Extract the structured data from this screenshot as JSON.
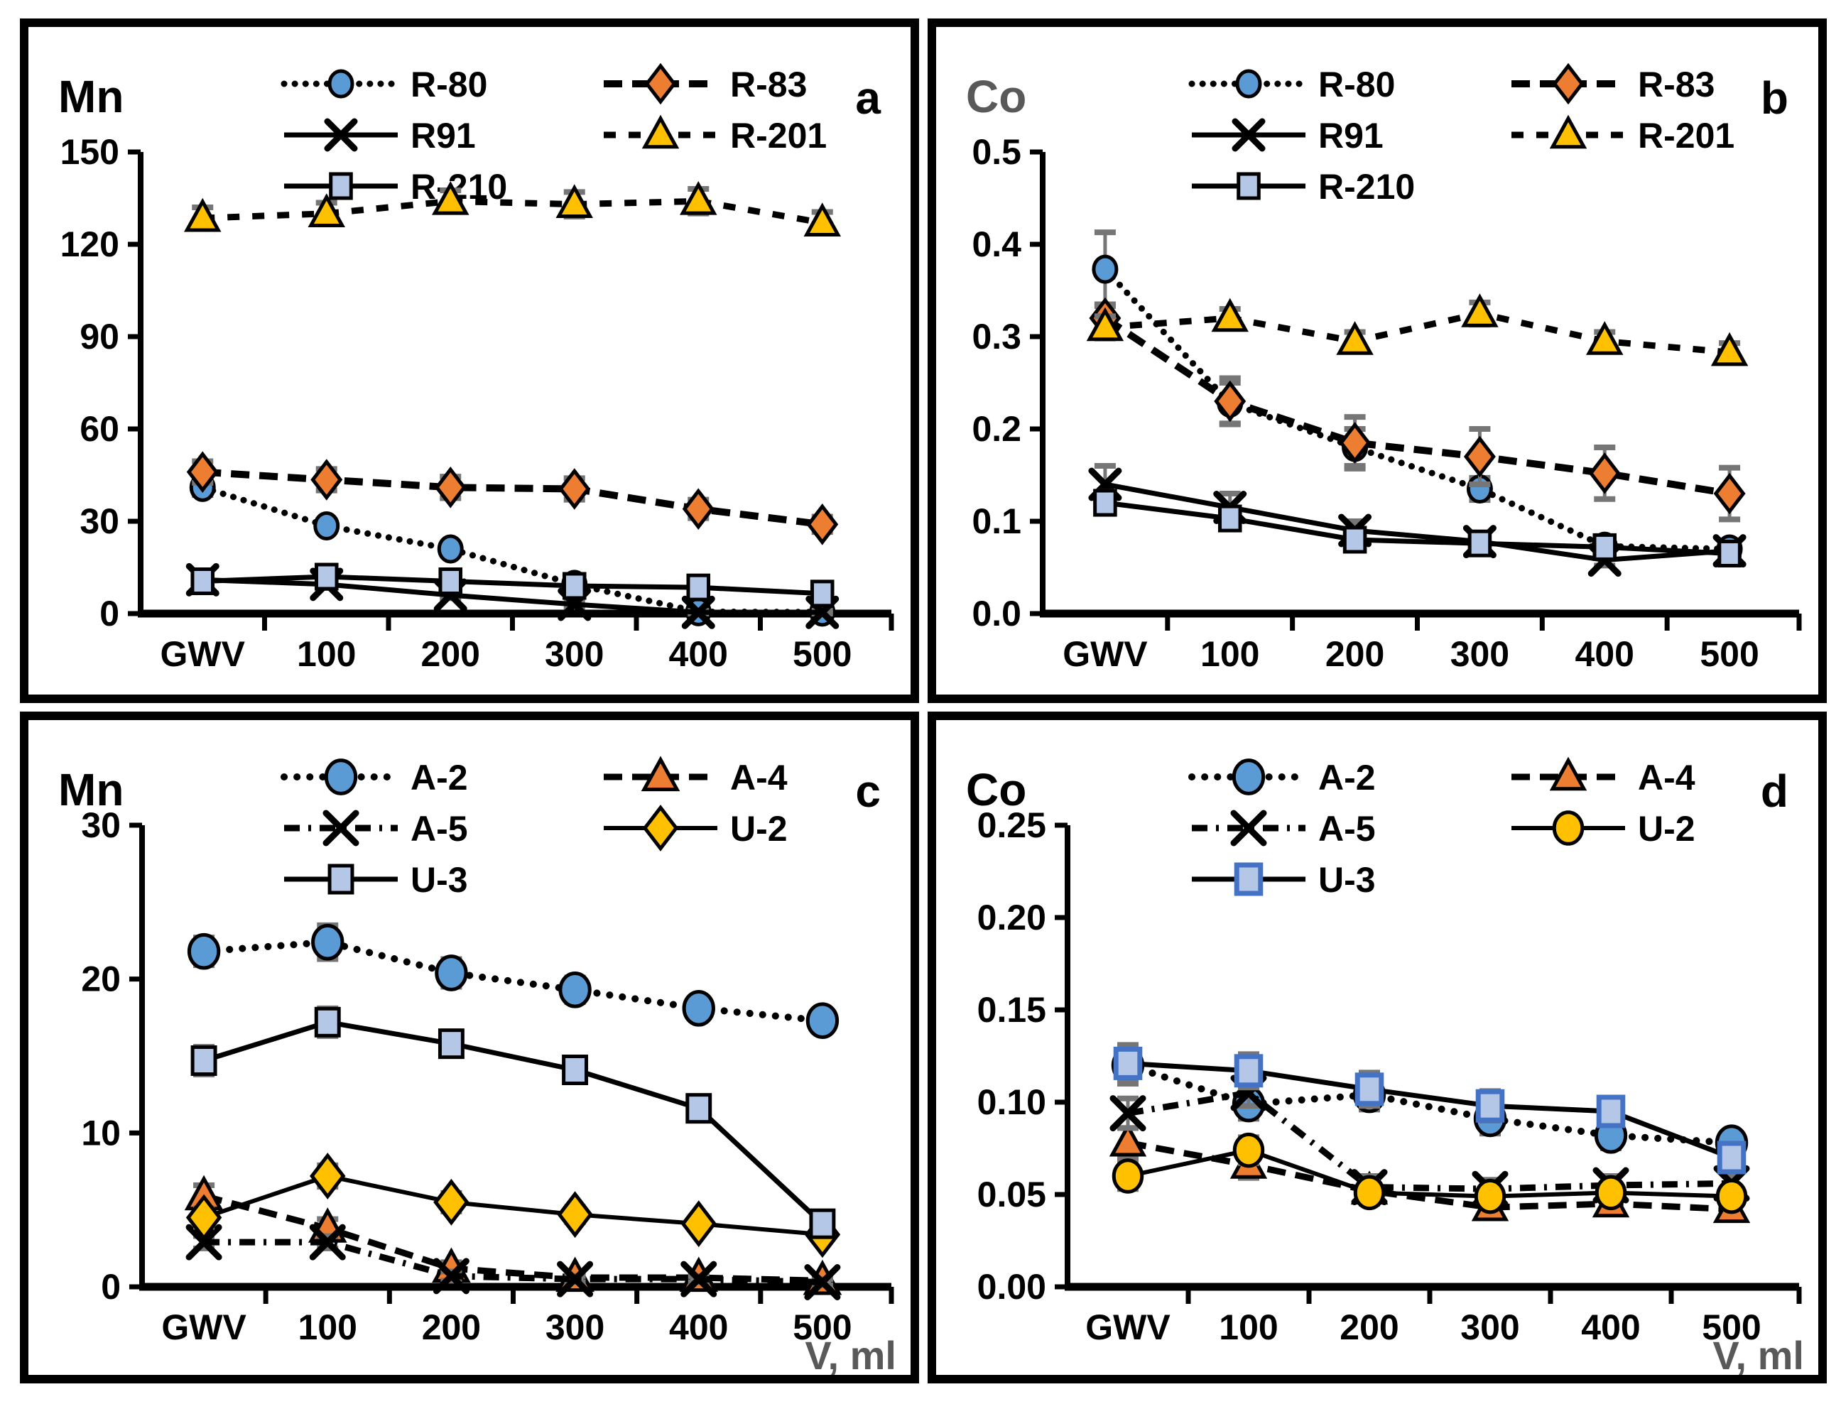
{
  "figure": {
    "xlabel": "V, ml",
    "xlabel_color": "#595959",
    "error_bar_color": "#767676",
    "colors": {
      "blue": "#5B9BD5",
      "orange": "#ED7D31",
      "yellow": "#FFC000",
      "light_blue": "#B4C7E7",
      "dark_blue_border": "#4472C4",
      "gray_title": "#595959",
      "black": "#000000"
    }
  },
  "chart_data": [
    {
      "type": "line",
      "letter": "a",
      "title": "Mn",
      "title_color": "#000000",
      "ylim": [
        0,
        150
      ],
      "yticks": [
        0,
        30,
        60,
        90,
        120,
        150
      ],
      "decimals": 0,
      "categories": [
        "GWV",
        "100",
        "200",
        "300",
        "400",
        "500"
      ],
      "xlabel": "",
      "legend_position": "top-inside",
      "grid": false,
      "series": [
        {
          "name": "R-80",
          "line": {
            "style": "dotted",
            "width": 9
          },
          "marker": {
            "shape": "circle",
            "fill": "#5B9BD5",
            "stroke": "#000000",
            "size": 34
          },
          "values": [
            41,
            28.5,
            21,
            9.5,
            0.6,
            0.5
          ],
          "err": [
            2.5,
            2,
            1.5,
            1,
            0.8,
            0.8
          ]
        },
        {
          "name": "R-83",
          "line": {
            "style": "dashed-heavy",
            "width": 10
          },
          "marker": {
            "shape": "diamond",
            "fill": "#ED7D31",
            "stroke": "#000000",
            "size": 42
          },
          "values": [
            46,
            43.5,
            41,
            40.5,
            34,
            29
          ],
          "err": [
            3.5,
            3.5,
            3.5,
            3.5,
            3,
            2.5
          ]
        },
        {
          "name": "R91",
          "line": {
            "style": "solid",
            "width": 7
          },
          "marker": {
            "shape": "x",
            "fill": "none",
            "stroke": "#000000",
            "size": 38
          },
          "values": [
            11,
            9.5,
            6,
            3,
            0.4,
            0.4
          ],
          "err": [
            1.5,
            1.2,
            1,
            0.8,
            0.5,
            0.5
          ]
        },
        {
          "name": "R-201",
          "line": {
            "style": "dashed-med",
            "width": 9
          },
          "marker": {
            "shape": "triangle",
            "fill": "#FFC000",
            "stroke": "#000000",
            "size": 40
          },
          "values": [
            128.5,
            130,
            134,
            133,
            134,
            127
          ],
          "err": [
            3.5,
            3.5,
            3.5,
            4,
            4,
            3.5
          ]
        },
        {
          "name": "R-210",
          "line": {
            "style": "solid",
            "width": 7
          },
          "marker": {
            "shape": "square",
            "fill": "#B4C7E7",
            "stroke": "#000000",
            "size": 34
          },
          "values": [
            10.5,
            12,
            10.5,
            9,
            8.5,
            6.5
          ],
          "err": [
            2,
            1.5,
            1.5,
            1.5,
            1.2,
            1.2
          ]
        }
      ]
    },
    {
      "type": "line",
      "letter": "b",
      "title": "Co",
      "title_color": "#595959",
      "ylim": [
        0,
        0.5
      ],
      "yticks": [
        0,
        0.1,
        0.2,
        0.3,
        0.4,
        0.5
      ],
      "decimals": 1,
      "categories": [
        "GWV",
        "100",
        "200",
        "300",
        "400",
        "500"
      ],
      "xlabel": "",
      "legend_position": "top-inside",
      "grid": false,
      "series": [
        {
          "name": "R-80",
          "line": {
            "style": "dotted",
            "width": 9
          },
          "marker": {
            "shape": "circle",
            "fill": "#5B9BD5",
            "stroke": "#000000",
            "size": 34
          },
          "values": [
            0.373,
            0.228,
            0.18,
            0.135,
            0.073,
            0.07
          ],
          "err": [
            0.04,
            0.022,
            0.02,
            0.012,
            0.008,
            0.008
          ]
        },
        {
          "name": "R-83",
          "line": {
            "style": "dashed-heavy",
            "width": 10
          },
          "marker": {
            "shape": "diamond",
            "fill": "#ED7D31",
            "stroke": "#000000",
            "size": 42
          },
          "values": [
            0.32,
            0.23,
            0.185,
            0.17,
            0.152,
            0.13
          ],
          "err": [
            0.015,
            0.025,
            0.028,
            0.03,
            0.028,
            0.028
          ]
        },
        {
          "name": "R91",
          "line": {
            "style": "solid",
            "width": 7
          },
          "marker": {
            "shape": "x",
            "fill": "none",
            "stroke": "#000000",
            "size": 38
          },
          "values": [
            0.14,
            0.115,
            0.09,
            0.078,
            0.058,
            0.068
          ],
          "err": [
            0.02,
            0.015,
            0.01,
            0.008,
            0.006,
            0.008
          ]
        },
        {
          "name": "R-201",
          "line": {
            "style": "dashed-med",
            "width": 9
          },
          "marker": {
            "shape": "triangle",
            "fill": "#FFC000",
            "stroke": "#000000",
            "size": 40
          },
          "values": [
            0.31,
            0.32,
            0.295,
            0.325,
            0.295,
            0.283
          ],
          "err": [
            0.012,
            0.01,
            0.01,
            0.012,
            0.01,
            0.01
          ]
        },
        {
          "name": "R-210",
          "line": {
            "style": "solid",
            "width": 7
          },
          "marker": {
            "shape": "square",
            "fill": "#B4C7E7",
            "stroke": "#000000",
            "size": 34
          },
          "values": [
            0.12,
            0.103,
            0.08,
            0.076,
            0.072,
            0.065
          ],
          "err": [
            0.012,
            0.01,
            0.008,
            0.008,
            0.008,
            0.008
          ]
        }
      ]
    },
    {
      "type": "line",
      "letter": "c",
      "title": "Mn",
      "title_color": "#000000",
      "ylim": [
        0,
        30
      ],
      "yticks": [
        0,
        10,
        20,
        30
      ],
      "decimals": 0,
      "categories": [
        "GWV",
        "100",
        "200",
        "300",
        "400",
        "500"
      ],
      "xlabel": "V, ml",
      "legend_position": "top-inside",
      "grid": false,
      "series": [
        {
          "name": "A-2",
          "line": {
            "style": "dotted-large",
            "width": 10
          },
          "marker": {
            "shape": "circle",
            "fill": "#5B9BD5",
            "stroke": "#000000",
            "size": 44
          },
          "values": [
            21.8,
            22.4,
            20.4,
            19.3,
            18.1,
            17.3
          ],
          "err": [
            0.9,
            1.1,
            0.9,
            0.8,
            0.7,
            0.6
          ]
        },
        {
          "name": "A-4",
          "line": {
            "style": "dashed-heavy",
            "width": 9
          },
          "marker": {
            "shape": "triangle",
            "fill": "#ED7D31",
            "stroke": "#000000",
            "size": 42
          },
          "values": [
            5.9,
            3.8,
            1.2,
            0.6,
            0.6,
            0.4
          ],
          "err": [
            0.7,
            0.6,
            0.4,
            0.3,
            0.3,
            0.2
          ]
        },
        {
          "name": "A-5",
          "line": {
            "style": "dashdot",
            "width": 9
          },
          "marker": {
            "shape": "x",
            "fill": "none",
            "stroke": "#000000",
            "size": 42
          },
          "values": [
            2.9,
            2.9,
            0.7,
            0.5,
            0.5,
            0.3
          ],
          "err": [
            0.4,
            0.4,
            0.3,
            0.2,
            0.2,
            0.2
          ]
        },
        {
          "name": "U-2",
          "line": {
            "style": "solid",
            "width": 6
          },
          "marker": {
            "shape": "diamond",
            "fill": "#FFC000",
            "stroke": "#000000",
            "size": 48
          },
          "values": [
            4.5,
            7.2,
            5.5,
            4.7,
            4.1,
            3.4
          ],
          "err": [
            0.6,
            0.7,
            0.6,
            0.5,
            0.4,
            0.4
          ]
        },
        {
          "name": "U-3",
          "line": {
            "style": "solid",
            "width": 7
          },
          "marker": {
            "shape": "square",
            "fill": "#B4C7E7",
            "stroke": "#000000",
            "size": 38
          },
          "values": [
            14.7,
            17.2,
            15.8,
            14.1,
            11.6,
            4.1
          ],
          "err": [
            0.9,
            0.9,
            0.8,
            0.8,
            0.6,
            0.5
          ]
        }
      ]
    },
    {
      "type": "line",
      "letter": "d",
      "title": "Co",
      "title_color": "#000000",
      "ylim": [
        0,
        0.25
      ],
      "yticks": [
        0,
        0.05,
        0.1,
        0.15,
        0.2,
        0.25
      ],
      "decimals": 2,
      "categories": [
        "GWV",
        "100",
        "200",
        "300",
        "400",
        "500"
      ],
      "xlabel": "V, ml",
      "legend_position": "top-inside",
      "grid": false,
      "series": [
        {
          "name": "A-2",
          "line": {
            "style": "dotted-large",
            "width": 10
          },
          "marker": {
            "shape": "circle",
            "fill": "#5B9BD5",
            "stroke": "#000000",
            "size": 44
          },
          "values": [
            0.12,
            0.099,
            0.104,
            0.091,
            0.082,
            0.078
          ],
          "err": [
            0.01,
            0.008,
            0.008,
            0.008,
            0.007,
            0.006
          ]
        },
        {
          "name": "A-4",
          "line": {
            "style": "dashed-heavy",
            "width": 9
          },
          "marker": {
            "shape": "triangle",
            "fill": "#ED7D31",
            "stroke": "#000000",
            "size": 40
          },
          "values": [
            0.078,
            0.066,
            0.052,
            0.043,
            0.045,
            0.042
          ],
          "err": [
            0.008,
            0.007,
            0.006,
            0.005,
            0.005,
            0.005
          ]
        },
        {
          "name": "A-5",
          "line": {
            "style": "dashdot",
            "width": 9
          },
          "marker": {
            "shape": "x",
            "fill": "none",
            "stroke": "#000000",
            "size": 42
          },
          "values": [
            0.094,
            0.105,
            0.054,
            0.053,
            0.055,
            0.056
          ],
          "err": [
            0.008,
            0.007,
            0.006,
            0.005,
            0.005,
            0.005
          ]
        },
        {
          "name": "U-2",
          "line": {
            "style": "solid",
            "width": 6
          },
          "marker": {
            "shape": "circle",
            "fill": "#FFC000",
            "stroke": "#000000",
            "size": 42
          },
          "values": [
            0.06,
            0.074,
            0.051,
            0.049,
            0.051,
            0.049
          ],
          "err": [
            0.007,
            0.007,
            0.006,
            0.005,
            0.005,
            0.005
          ]
        },
        {
          "name": "U-3",
          "line": {
            "style": "solid",
            "width": 7
          },
          "marker": {
            "shape": "square",
            "fill": "#B4C7E7",
            "stroke": "#4472C4",
            "size": 40
          },
          "values": [
            0.121,
            0.117,
            0.107,
            0.098,
            0.095,
            0.07
          ],
          "err": [
            0.01,
            0.009,
            0.009,
            0.008,
            0.007,
            0.007
          ]
        }
      ]
    }
  ]
}
